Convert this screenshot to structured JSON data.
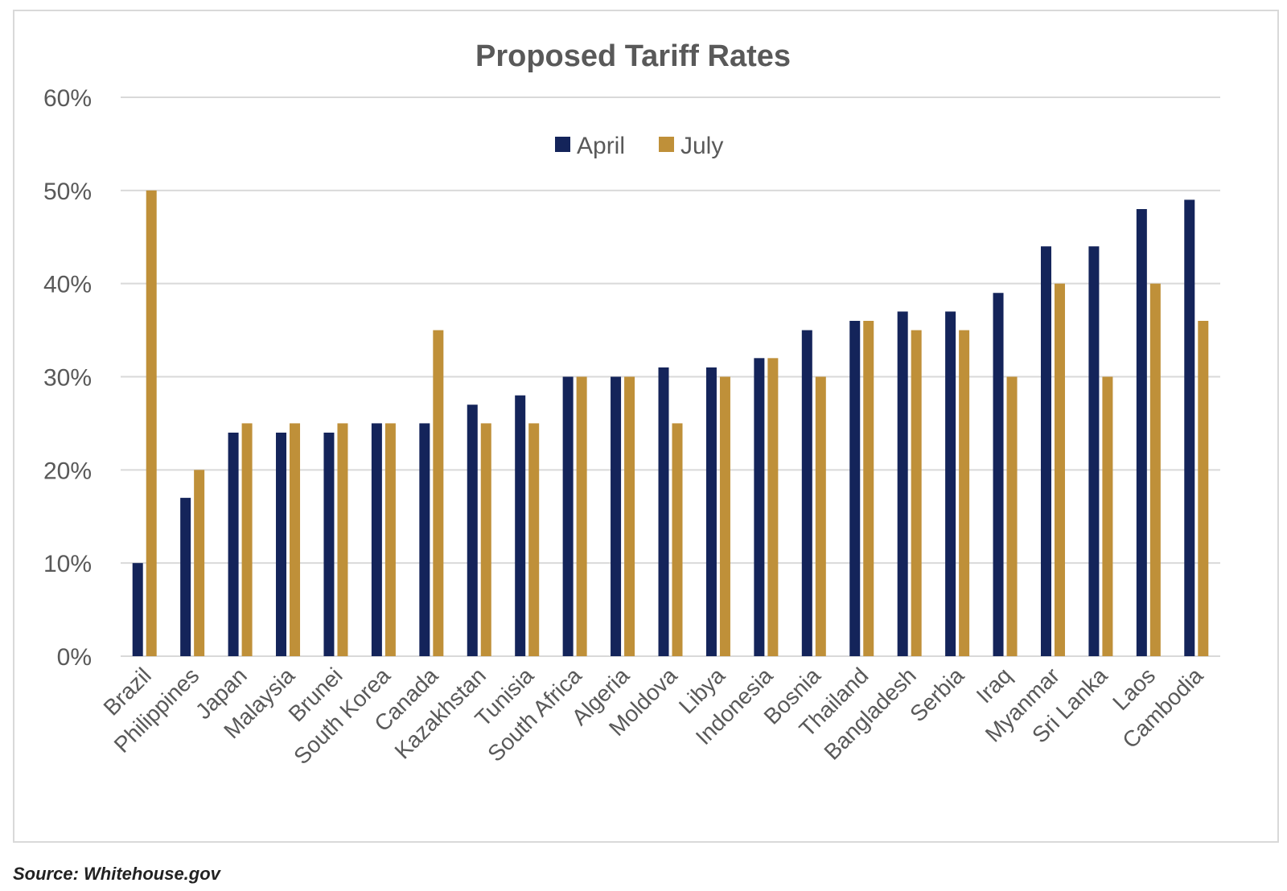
{
  "chart_data": {
    "type": "bar",
    "title": "Proposed Tariff Rates",
    "categories": [
      "Brazil",
      "Philippines",
      "Japan",
      "Malaysia",
      "Brunei",
      "South Korea",
      "Canada",
      "Kazakhstan",
      "Tunisia",
      "South Africa",
      "Algeria",
      "Moldova",
      "Libya",
      "Indonesia",
      "Bosnia",
      "Thailand",
      "Bangladesh",
      "Serbia",
      "Iraq",
      "Myanmar",
      "Sri Lanka",
      "Laos",
      "Cambodia"
    ],
    "series": [
      {
        "name": "April",
        "color": "#14245a",
        "values": [
          10,
          17,
          24,
          24,
          24,
          25,
          25,
          27,
          28,
          30,
          30,
          31,
          31,
          32,
          35,
          36,
          37,
          37,
          39,
          44,
          44,
          48,
          49
        ]
      },
      {
        "name": "July",
        "color": "#bf9039",
        "values": [
          50,
          20,
          25,
          25,
          25,
          25,
          35,
          25,
          25,
          30,
          30,
          25,
          30,
          32,
          30,
          36,
          35,
          35,
          30,
          40,
          30,
          40,
          36
        ]
      }
    ],
    "ylim": [
      0,
      60
    ],
    "yticks": [
      0,
      10,
      20,
      30,
      40,
      50,
      60
    ],
    "ytick_labels": [
      "0%",
      "10%",
      "20%",
      "30%",
      "40%",
      "50%",
      "60%"
    ],
    "xlabel": "",
    "ylabel": "",
    "grid": true,
    "legend_position": "top-center"
  },
  "source": "Source: Whitehouse.gov",
  "colors": {
    "grid": "#d9d9d9",
    "axis_text": "#595959",
    "title_text": "#595959"
  }
}
